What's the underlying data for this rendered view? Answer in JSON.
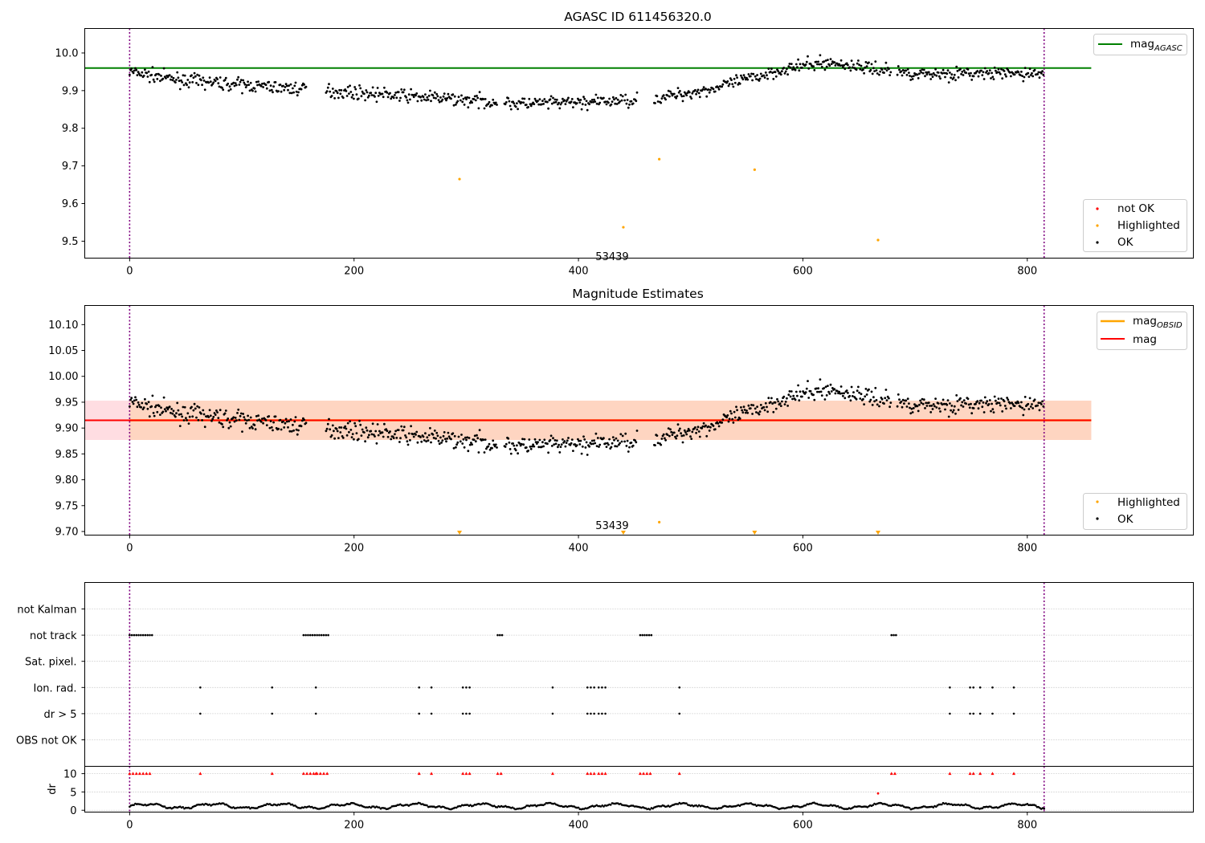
{
  "chart_data": [
    {
      "id": "agasc",
      "type": "scatter",
      "title": "AGASC ID 611456320.0",
      "xlim": [
        -40,
        948
      ],
      "ylim": [
        9.455,
        10.065
      ],
      "xticks": [
        0,
        200,
        400,
        600,
        800
      ],
      "yticks": [
        9.5,
        9.6,
        9.7,
        9.8,
        9.9,
        10.0
      ],
      "ytick_labels": [
        "9.5",
        "9.6",
        "9.7",
        "9.8",
        "9.9",
        "10.0"
      ],
      "hline": {
        "label": "mag",
        "label_sub": "AGASC",
        "value": 9.96,
        "x_range": [
          -40,
          857
        ],
        "color": "#008000"
      },
      "obs_boundaries": [
        0,
        815
      ],
      "obs_label": {
        "text": "53439",
        "x": 407,
        "y": 9.475
      },
      "highlighted": {
        "x": [
          294,
          440,
          472,
          557,
          667
        ],
        "y": [
          9.665,
          9.537,
          9.718,
          9.69,
          9.503
        ]
      },
      "legend_line": {
        "position": "top-right",
        "entries": [
          {
            "label": "mag",
            "sub": "AGASC",
            "color": "#008000"
          }
        ]
      },
      "legend_points": {
        "position": "bottom-right",
        "entries": [
          {
            "label": "not OK",
            "color": "#ff0000"
          },
          {
            "label": "Highlighted",
            "color": "#ffa500"
          },
          {
            "label": "OK",
            "color": "#000000"
          }
        ]
      }
    },
    {
      "id": "mag_estimates",
      "type": "scatter",
      "title": "Magnitude Estimates",
      "xlim": [
        -40,
        948
      ],
      "ylim": [
        9.693,
        10.137
      ],
      "xticks": [
        0,
        200,
        400,
        600,
        800
      ],
      "yticks": [
        9.7,
        9.75,
        9.8,
        9.85,
        9.9,
        9.95,
        10.0,
        10.05,
        10.1
      ],
      "ytick_labels": [
        "9.70",
        "9.75",
        "9.80",
        "9.85",
        "9.90",
        "9.95",
        "10.00",
        "10.05",
        "10.10"
      ],
      "mag_line": {
        "label": "mag",
        "value": 9.915,
        "band": [
          9.877,
          9.953
        ],
        "x_range": [
          -40,
          857
        ],
        "color": "#ff0000"
      },
      "mag_obsid": {
        "label": "mag",
        "label_sub": "OBSID",
        "value": 9.915,
        "band": [
          9.877,
          9.953
        ],
        "x_range": [
          0,
          857
        ],
        "color": "#ffa500"
      },
      "obs_boundaries": [
        0,
        815
      ],
      "obs_label": {
        "text": "53439",
        "x": 407,
        "y": 9.706
      },
      "highlighted": {
        "x": [
          472
        ],
        "y": [
          9.718
        ]
      },
      "below_range_markers": [
        294,
        440,
        557,
        667
      ],
      "legend_line": {
        "position": "top-right",
        "entries": [
          {
            "label": "mag",
            "sub": "OBSID",
            "color": "#ffa500"
          },
          {
            "label": "mag",
            "color": "#ff0000"
          }
        ]
      },
      "legend_points": {
        "position": "bottom-right",
        "entries": [
          {
            "label": "Highlighted",
            "color": "#ffa500"
          },
          {
            "label": "OK",
            "color": "#000000"
          }
        ]
      }
    },
    {
      "id": "flags",
      "type": "scatter",
      "categories": [
        "not Kalman",
        "not track",
        "Sat. pixel.",
        "Ion. rad.",
        "dr > 5",
        "OBS not OK"
      ],
      "xlim": [
        -40,
        948
      ],
      "obs_boundaries": [
        0,
        815
      ],
      "flag_ranges": {
        "not track": [
          [
            0,
            20
          ],
          [
            155,
            178
          ],
          [
            328,
            333
          ],
          [
            455,
            466
          ],
          [
            679,
            684
          ]
        ]
      },
      "flag_points": {
        "Ion. rad.": [
          63,
          127,
          166,
          258,
          269,
          297,
          300,
          303,
          377,
          408,
          411,
          414,
          418,
          421,
          424,
          490,
          731,
          749,
          752,
          758,
          769,
          788
        ],
        "dr > 5": [
          63,
          127,
          166,
          258,
          269,
          297,
          300,
          303,
          377,
          408,
          411,
          414,
          418,
          421,
          424,
          490,
          731,
          749,
          752,
          758,
          769,
          788
        ]
      }
    },
    {
      "id": "dr",
      "type": "scatter",
      "ylabel": "dr",
      "xlim": [
        -40,
        948
      ],
      "ylim": [
        -0.5,
        12
      ],
      "xticks": [
        0,
        200,
        400,
        600,
        800
      ],
      "yticks": [
        0,
        5,
        10
      ],
      "ytick_labels": [
        "0",
        "5",
        "10"
      ],
      "obs_boundaries": [
        0,
        815
      ],
      "clipped_marker_y": 10,
      "outlier": {
        "x": 667,
        "y": 4.6
      }
    }
  ],
  "colors": {
    "ok": "#000000",
    "highlighted": "#ffa500",
    "not_ok": "#ff0000",
    "boundary": "#800080",
    "band_red": "#ffdde2",
    "band_orange": "#fed5c1",
    "grid": "#b0b0b0"
  }
}
